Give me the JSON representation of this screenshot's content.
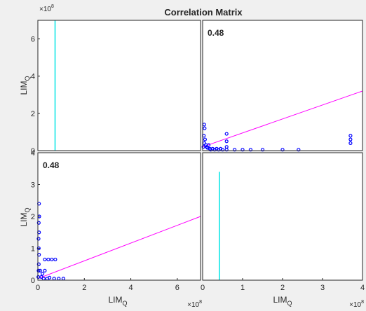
{
  "chart_data": {
    "type": "scatter",
    "title": "Correlation Matrix",
    "variable": "LIM",
    "variable_subscript": "Q",
    "xlabel": "LIM",
    "ylabel": "LIM",
    "exponent_label": "×10",
    "exponent": "8",
    "correlation_label": "0.48",
    "colors": {
      "points": "#0000ff",
      "fit": "#ff00ff",
      "hist": "#00e5e5",
      "axes_bg": "#ffffff",
      "figure_bg": "#f0f0f0"
    },
    "panels": [
      {
        "position": "row1-col1",
        "kind": "histogram",
        "xlim": [
          0,
          7.0
        ],
        "ylim": [
          0,
          7.0
        ],
        "yticks": [
          0,
          2,
          4,
          6
        ],
        "ytick_labels": [
          "0",
          "2",
          "4",
          "6"
        ],
        "xticks": [],
        "bars": [
          {
            "x": 0.74,
            "height": 7.0
          }
        ]
      },
      {
        "position": "row1-col2",
        "kind": "scatter",
        "r": "0.48",
        "xlim": [
          0,
          4.0
        ],
        "ylim": [
          0,
          7.0
        ],
        "xticks": [],
        "yticks": [],
        "fit_line": {
          "x": [
            0,
            4.0
          ],
          "y": [
            0.2,
            3.2
          ]
        },
        "points": [
          [
            0.02,
            0.2
          ],
          [
            0.04,
            0.4
          ],
          [
            0.03,
            0.8
          ],
          [
            0.05,
            1.2
          ],
          [
            0.04,
            1.4
          ],
          [
            0.06,
            0.6
          ],
          [
            0.08,
            0.3
          ],
          [
            0.1,
            0.2
          ],
          [
            0.12,
            0.15
          ],
          [
            0.15,
            0.3
          ],
          [
            0.18,
            0.1
          ],
          [
            0.2,
            0.05
          ],
          [
            0.25,
            0.1
          ],
          [
            0.3,
            0.05
          ],
          [
            0.35,
            0.1
          ],
          [
            0.4,
            0.05
          ],
          [
            0.45,
            0.1
          ],
          [
            0.5,
            0.05
          ],
          [
            0.6,
            0.05
          ],
          [
            0.6,
            0.9
          ],
          [
            0.6,
            0.5
          ],
          [
            0.6,
            0.2
          ],
          [
            0.8,
            0.05
          ],
          [
            1.0,
            0.05
          ],
          [
            1.2,
            0.05
          ],
          [
            1.5,
            0.05
          ],
          [
            2.0,
            0.05
          ],
          [
            2.4,
            0.05
          ],
          [
            3.7,
            0.4
          ],
          [
            3.7,
            0.6
          ],
          [
            3.7,
            0.8
          ]
        ]
      },
      {
        "position": "row2-col1",
        "kind": "scatter",
        "r": "0.48",
        "xlim": [
          0,
          7.0
        ],
        "ylim": [
          0,
          4.0
        ],
        "xticks": [
          0,
          2,
          4,
          6
        ],
        "xtick_labels": [
          "0",
          "2",
          "4",
          "6"
        ],
        "yticks": [
          0,
          1,
          2,
          3,
          4
        ],
        "ytick_labels": [
          "0",
          "1",
          "2",
          "3",
          "4"
        ],
        "fit_line": {
          "x": [
            0,
            7.0
          ],
          "y": [
            0.05,
            2.0
          ]
        },
        "points": [
          [
            0.02,
            0.1
          ],
          [
            0.03,
            0.3
          ],
          [
            0.04,
            0.5
          ],
          [
            0.05,
            0.8
          ],
          [
            0.04,
            1.0
          ],
          [
            0.03,
            1.3
          ],
          [
            0.05,
            1.5
          ],
          [
            0.04,
            1.8
          ],
          [
            0.06,
            2.0
          ],
          [
            0.05,
            2.4
          ],
          [
            0.1,
            0.3
          ],
          [
            0.15,
            0.1
          ],
          [
            0.2,
            0.2
          ],
          [
            0.25,
            0.05
          ],
          [
            0.3,
            0.3
          ],
          [
            0.4,
            0.05
          ],
          [
            0.5,
            0.08
          ],
          [
            0.7,
            0.05
          ],
          [
            0.9,
            0.05
          ],
          [
            1.1,
            0.05
          ],
          [
            0.3,
            0.65
          ],
          [
            0.45,
            0.65
          ],
          [
            0.6,
            0.65
          ],
          [
            0.75,
            0.65
          ]
        ]
      },
      {
        "position": "row2-col2",
        "kind": "histogram",
        "xlim": [
          0,
          4.0
        ],
        "ylim": [
          0,
          4.0
        ],
        "xticks": [
          0,
          1,
          2,
          3,
          4
        ],
        "xtick_labels": [
          "0",
          "1",
          "2",
          "3",
          "4"
        ],
        "yticks": [],
        "bars": [
          {
            "x": 0.42,
            "height": 3.4
          }
        ]
      }
    ]
  }
}
